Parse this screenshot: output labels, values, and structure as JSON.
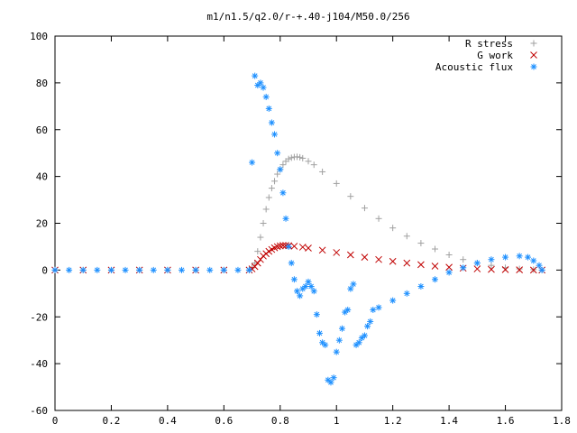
{
  "chart_data": {
    "type": "scatter",
    "title": "m1/n1.5/q2.0/r-+.40-j104/M50.0/256",
    "xlabel": "",
    "ylabel": "",
    "xlim": [
      0,
      1.8
    ],
    "ylim": [
      -60,
      100
    ],
    "x_ticks": [
      "0",
      "0.2",
      "0.4",
      "0.6",
      "0.8",
      "1",
      "1.2",
      "1.4",
      "1.6",
      "1.8"
    ],
    "y_ticks": [
      "100",
      "80",
      "60",
      "40",
      "20",
      "0",
      "-20",
      "-40",
      "-60"
    ],
    "legend_position": "top-right",
    "grid": false,
    "series": [
      {
        "name": "R stress",
        "marker": "+",
        "color": "#a0a0a0",
        "points": [
          [
            0,
            0
          ],
          [
            0.1,
            0
          ],
          [
            0.2,
            0
          ],
          [
            0.3,
            0
          ],
          [
            0.4,
            0
          ],
          [
            0.5,
            0
          ],
          [
            0.6,
            0
          ],
          [
            0.69,
            0
          ],
          [
            0.7,
            1
          ],
          [
            0.71,
            3
          ],
          [
            0.72,
            8
          ],
          [
            0.73,
            14
          ],
          [
            0.74,
            20
          ],
          [
            0.75,
            26
          ],
          [
            0.76,
            31
          ],
          [
            0.77,
            35
          ],
          [
            0.78,
            38
          ],
          [
            0.79,
            41
          ],
          [
            0.8,
            43
          ],
          [
            0.81,
            45
          ],
          [
            0.82,
            46.5
          ],
          [
            0.83,
            47.5
          ],
          [
            0.84,
            48
          ],
          [
            0.85,
            48.3
          ],
          [
            0.86,
            48.4
          ],
          [
            0.87,
            48.2
          ],
          [
            0.88,
            47.8
          ],
          [
            0.9,
            46.5
          ],
          [
            0.92,
            45
          ],
          [
            0.95,
            42
          ],
          [
            1.0,
            37
          ],
          [
            1.05,
            31.5
          ],
          [
            1.1,
            26.5
          ],
          [
            1.15,
            22
          ],
          [
            1.2,
            18
          ],
          [
            1.25,
            14.5
          ],
          [
            1.3,
            11.5
          ],
          [
            1.35,
            9
          ],
          [
            1.4,
            6.5
          ],
          [
            1.45,
            4.5
          ],
          [
            1.5,
            3
          ],
          [
            1.55,
            2
          ],
          [
            1.6,
            1
          ],
          [
            1.65,
            0.5
          ],
          [
            1.7,
            0.2
          ],
          [
            1.73,
            0
          ]
        ]
      },
      {
        "name": "G work",
        "marker": "x",
        "color": "#c00000",
        "points": [
          [
            0,
            0
          ],
          [
            0.1,
            0
          ],
          [
            0.2,
            0
          ],
          [
            0.3,
            0
          ],
          [
            0.4,
            0
          ],
          [
            0.5,
            0
          ],
          [
            0.6,
            0
          ],
          [
            0.69,
            0
          ],
          [
            0.7,
            0.5
          ],
          [
            0.71,
            1.5
          ],
          [
            0.72,
            3
          ],
          [
            0.73,
            4.5
          ],
          [
            0.74,
            6
          ],
          [
            0.75,
            7
          ],
          [
            0.76,
            8
          ],
          [
            0.77,
            8.8
          ],
          [
            0.78,
            9.5
          ],
          [
            0.79,
            10
          ],
          [
            0.8,
            10.3
          ],
          [
            0.81,
            10.5
          ],
          [
            0.82,
            10.5
          ],
          [
            0.83,
            10.4
          ],
          [
            0.85,
            10.2
          ],
          [
            0.88,
            9.8
          ],
          [
            0.9,
            9.4
          ],
          [
            0.95,
            8.5
          ],
          [
            1.0,
            7.5
          ],
          [
            1.05,
            6.5
          ],
          [
            1.1,
            5.5
          ],
          [
            1.15,
            4.5
          ],
          [
            1.2,
            3.7
          ],
          [
            1.25,
            3
          ],
          [
            1.3,
            2.3
          ],
          [
            1.35,
            1.7
          ],
          [
            1.4,
            1.2
          ],
          [
            1.45,
            0.8
          ],
          [
            1.5,
            0.5
          ],
          [
            1.55,
            0.3
          ],
          [
            1.6,
            0.2
          ],
          [
            1.65,
            0.1
          ],
          [
            1.7,
            0
          ],
          [
            1.73,
            0
          ]
        ]
      },
      {
        "name": "Acoustic flux",
        "marker": "*",
        "color": "#1e90ff",
        "points": [
          [
            0,
            0
          ],
          [
            0.05,
            0
          ],
          [
            0.1,
            0
          ],
          [
            0.15,
            0
          ],
          [
            0.2,
            0
          ],
          [
            0.25,
            0
          ],
          [
            0.3,
            0
          ],
          [
            0.35,
            0
          ],
          [
            0.4,
            0
          ],
          [
            0.45,
            0
          ],
          [
            0.5,
            0
          ],
          [
            0.55,
            0
          ],
          [
            0.6,
            0
          ],
          [
            0.65,
            0
          ],
          [
            0.69,
            0
          ],
          [
            0.7,
            46
          ],
          [
            0.71,
            83
          ],
          [
            0.72,
            79
          ],
          [
            0.73,
            80
          ],
          [
            0.74,
            78
          ],
          [
            0.75,
            74
          ],
          [
            0.76,
            69
          ],
          [
            0.77,
            63
          ],
          [
            0.78,
            58
          ],
          [
            0.79,
            50
          ],
          [
            0.8,
            43
          ],
          [
            0.81,
            33
          ],
          [
            0.82,
            22
          ],
          [
            0.83,
            10
          ],
          [
            0.84,
            3
          ],
          [
            0.85,
            -4
          ],
          [
            0.86,
            -9
          ],
          [
            0.87,
            -11
          ],
          [
            0.88,
            -8
          ],
          [
            0.89,
            -7
          ],
          [
            0.9,
            -5
          ],
          [
            0.91,
            -7
          ],
          [
            0.92,
            -9
          ],
          [
            0.93,
            -19
          ],
          [
            0.94,
            -27
          ],
          [
            0.95,
            -31
          ],
          [
            0.96,
            -32
          ],
          [
            0.97,
            -47
          ],
          [
            0.98,
            -48
          ],
          [
            0.99,
            -46
          ],
          [
            1.0,
            -35
          ],
          [
            1.01,
            -30
          ],
          [
            1.02,
            -25
          ],
          [
            1.03,
            -18
          ],
          [
            1.04,
            -17
          ],
          [
            1.05,
            -8
          ],
          [
            1.06,
            -6
          ],
          [
            1.07,
            -32
          ],
          [
            1.08,
            -31
          ],
          [
            1.09,
            -29
          ],
          [
            1.1,
            -28
          ],
          [
            1.11,
            -24
          ],
          [
            1.12,
            -22
          ],
          [
            1.13,
            -17
          ],
          [
            1.15,
            -16
          ],
          [
            1.2,
            -13
          ],
          [
            1.25,
            -10
          ],
          [
            1.3,
            -7
          ],
          [
            1.35,
            -4
          ],
          [
            1.4,
            -1
          ],
          [
            1.45,
            1
          ],
          [
            1.5,
            3
          ],
          [
            1.55,
            4.5
          ],
          [
            1.6,
            5.5
          ],
          [
            1.65,
            6
          ],
          [
            1.68,
            5.5
          ],
          [
            1.7,
            4
          ],
          [
            1.72,
            2
          ],
          [
            1.73,
            0
          ]
        ]
      }
    ]
  }
}
